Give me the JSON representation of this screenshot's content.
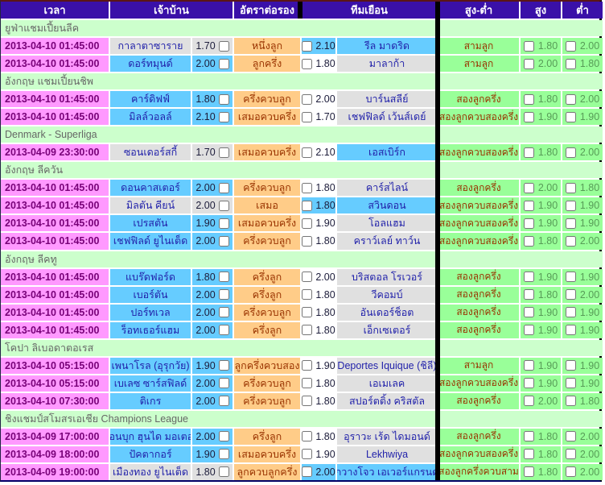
{
  "header": {
    "cols": [
      "เวลา",
      "เจ้าบ้าน",
      "อัตราต่อรอง",
      "ทีมเยือน",
      "สูง-ต่ำ",
      "สูง",
      "ต่ำ"
    ]
  },
  "colors": {
    "header_bg": "#3a10a8",
    "time_bg": "#ff99ff",
    "favorite_bg": "#66ccff",
    "underdog_bg": "#e0e0e0",
    "handicap_bg": "#ffcc88",
    "over_under_bg": "#99ff99",
    "section_bg": "#ccffcc"
  },
  "sections": [
    {
      "title": "ยูฟ่าแชมเปี้ยนลีค",
      "matches": [
        {
          "time": "2013-04-10 01:45:00",
          "home": "กาลาตาซาราย",
          "home_odds": "1.70",
          "home_style": "gray",
          "handicap": "หนึ่งลูก",
          "away_odds": "2.10",
          "away_odds_style": "blue",
          "away": "รีล มาดริด",
          "away_style": "blue",
          "ou": "สามลูก",
          "over": "1.80",
          "under": "2.00"
        },
        {
          "time": "2013-04-10 01:45:00",
          "home": "ดอร์ทมุนด์",
          "home_odds": "2.00",
          "home_style": "blue",
          "handicap": "ลูกครึ่ง",
          "away_odds": "1.80",
          "away_odds_style": "white",
          "away": "มาลาก้า",
          "away_style": "gray",
          "ou": "สามลูก",
          "over": "2.00",
          "under": "1.80"
        }
      ]
    },
    {
      "title": "อังกฤษ แชมเปี้ยนชิพ",
      "matches": [
        {
          "time": "2013-04-10 01:45:00",
          "home": "คาร์ดิฟฟ์",
          "home_odds": "1.80",
          "home_style": "blue",
          "handicap": "ครึ่งควบลูก",
          "away_odds": "2.00",
          "away_odds_style": "white",
          "away": "บาร์นสลีย์",
          "away_style": "gray",
          "ou": "สองลูกครึ่ง",
          "over": "1.80",
          "under": "2.00"
        },
        {
          "time": "2013-04-10 01:45:00",
          "home": "มิลล์วอลล์",
          "home_odds": "2.10",
          "home_style": "blue",
          "handicap": "เสมอควบครึ่ง",
          "away_odds": "1.70",
          "away_odds_style": "white",
          "away": "เชฟฟิลด์ เว้นส์เดย์",
          "away_style": "gray",
          "ou": "สองลูกควบสองครึ่ง",
          "over": "1.90",
          "under": "1.90"
        }
      ]
    },
    {
      "title": "Denmark - Superliga",
      "matches": [
        {
          "time": "2013-04-09 23:30:00",
          "home": "ซอนเดอร์สกี้",
          "home_odds": "1.70",
          "home_style": "gray",
          "handicap": "เสมอควบครึ่ง",
          "away_odds": "2.10",
          "away_odds_style": "white",
          "away": "เอสเบิร์ก",
          "away_style": "blue",
          "ou": "สองลูกควบสองครึ่ง",
          "over": "1.80",
          "under": "2.00"
        }
      ]
    },
    {
      "title": "อังกฤษ ลีควัน",
      "matches": [
        {
          "time": "2013-04-10 01:45:00",
          "home": "ดอนคาสเตอร์",
          "home_odds": "2.00",
          "home_style": "blue",
          "handicap": "ครึ่งควบลูก",
          "away_odds": "1.80",
          "away_odds_style": "white",
          "away": "คาร์สไลน์",
          "away_style": "gray",
          "ou": "สองลูกครึ่ง",
          "over": "2.00",
          "under": "1.80"
        },
        {
          "time": "2013-04-10 01:45:00",
          "home": "มิลตัน คียน์",
          "home_odds": "2.00",
          "home_style": "gray",
          "handicap": "เสมอ",
          "away_odds": "1.80",
          "away_odds_style": "blue",
          "away": "สวินดอน",
          "away_style": "blue",
          "ou": "สองลูกควบสองครึ่ง",
          "over": "1.90",
          "under": "1.90"
        },
        {
          "time": "2013-04-10 01:45:00",
          "home": "เปรสตัน",
          "home_odds": "1.90",
          "home_style": "blue",
          "handicap": "เสมอควบครึ่ง",
          "away_odds": "1.90",
          "away_odds_style": "white",
          "away": "โอลแฮม",
          "away_style": "gray",
          "ou": "สองลูกควบสองครึ่ง",
          "over": "1.90",
          "under": "1.90"
        },
        {
          "time": "2013-04-10 01:45:00",
          "home": "เชฟฟิลด์ ยูไนเต็ด",
          "home_odds": "2.00",
          "home_style": "blue",
          "handicap": "ครึ่งควบลูก",
          "away_odds": "1.80",
          "away_odds_style": "white",
          "away": "คราว์เลย์ ทาว์น",
          "away_style": "gray",
          "ou": "สองลูกควบสองครึ่ง",
          "over": "1.80",
          "under": "2.00"
        }
      ]
    },
    {
      "title": "อังกฤษ ลีคทู",
      "matches": [
        {
          "time": "2013-04-10 01:45:00",
          "home": "แบร๊ดฟอร์ด",
          "home_odds": "1.80",
          "home_style": "blue",
          "handicap": "ครึ่งลูก",
          "away_odds": "2.00",
          "away_odds_style": "white",
          "away": "บริสตอล โรเวอร์",
          "away_style": "gray",
          "ou": "สองลูกครึ่ง",
          "over": "1.90",
          "under": "1.90"
        },
        {
          "time": "2013-04-10 01:45:00",
          "home": "เบอร์ตัน",
          "home_odds": "2.00",
          "home_style": "blue",
          "handicap": "ครึ่งลูก",
          "away_odds": "1.80",
          "away_odds_style": "white",
          "away": "วีคอมบ์",
          "away_style": "gray",
          "ou": "สองลูกครึ่ง",
          "over": "1.80",
          "under": "2.00"
        },
        {
          "time": "2013-04-10 01:45:00",
          "home": "ปอร์ทเวล",
          "home_odds": "2.00",
          "home_style": "blue",
          "handicap": "ครึ่งควบลูก",
          "away_odds": "1.80",
          "away_odds_style": "white",
          "away": "อันเดอร์ช็อต",
          "away_style": "gray",
          "ou": "สองลูกครึ่ง",
          "over": "1.90",
          "under": "1.90"
        },
        {
          "time": "2013-04-10 01:45:00",
          "home": "ร็อทเธอร์แฮม",
          "home_odds": "2.00",
          "home_style": "blue",
          "handicap": "ครึ่งลูก",
          "away_odds": "1.80",
          "away_odds_style": "white",
          "away": "เอ็กเซเตอร์",
          "away_style": "gray",
          "ou": "สองลูกครึ่ง",
          "over": "1.90",
          "under": "1.90"
        }
      ]
    },
    {
      "title": "โคปา ลิเบอดาตอเรส",
      "matches": [
        {
          "time": "2013-04-10 05:15:00",
          "home": "เพนาโรล (อุรุกวัย)",
          "home_odds": "1.90",
          "home_style": "blue",
          "handicap": "ลูกครึ่งควบสอง",
          "away_odds": "1.90",
          "away_odds_style": "white",
          "away": "Deportes Iquique (ชิลี)",
          "away_style": "gray",
          "ou": "สามลูก",
          "over": "1.90",
          "under": "1.90"
        },
        {
          "time": "2013-04-10 05:15:00",
          "home": "เบเลซ ซาร์สฟิลด์",
          "home_odds": "2.00",
          "home_style": "blue",
          "handicap": "ครึ่งควบลูก",
          "away_odds": "1.80",
          "away_odds_style": "white",
          "away": "เอเมเลค",
          "away_style": "gray",
          "ou": "สองลูกควบสองครึ่ง",
          "over": "1.90",
          "under": "1.90"
        },
        {
          "time": "2013-04-10 07:30:00",
          "home": "ติเกร",
          "home_odds": "2.00",
          "home_style": "blue",
          "handicap": "ครึ่งควบลูก",
          "away_odds": "1.80",
          "away_odds_style": "white",
          "away": "สปอร์ตติ้ง คริสตัล",
          "away_style": "gray",
          "ou": "สองลูกครึ่ง",
          "over": "2.00",
          "under": "1.80"
        }
      ]
    },
    {
      "title": "ชิงแชมป์สโมสรเอเชีย Champions League",
      "matches": [
        {
          "time": "2013-04-09 17:00:00",
          "home": "ชอนบุก ฮุนได มอเตอร์",
          "home_odds": "2.00",
          "home_style": "blue",
          "handicap": "ครึ่งลูก",
          "away_odds": "1.80",
          "away_odds_style": "white",
          "away": "อุราวะ เร้ด ไดมอนด์",
          "away_style": "gray",
          "ou": "สองลูกครึ่ง",
          "over": "1.80",
          "under": "2.00"
        },
        {
          "time": "2013-04-09 18:00:00",
          "home": "ปัคตากอร์",
          "home_odds": "1.90",
          "home_style": "blue",
          "handicap": "เสมอควบครึ่ง",
          "away_odds": "1.90",
          "away_odds_style": "white",
          "away": "Lekhwiya",
          "away_style": "gray",
          "ou": "สองลูกควบสองครึ่ง",
          "over": "1.80",
          "under": "2.00"
        },
        {
          "time": "2013-04-09 19:00:00",
          "home": "เมืองทอง ยูไนเต็ด",
          "home_odds": "1.80",
          "home_style": "gray",
          "handicap": "ลูกควบลูกครึ่ง",
          "away_odds": "2.00",
          "away_odds_style": "blue",
          "away": "กวางโจว เอเวอร์แกรนด์",
          "away_style": "blue",
          "ou": "สองลูกครึ่งควบสาม",
          "over": "1.80",
          "under": "2.00"
        }
      ]
    }
  ]
}
